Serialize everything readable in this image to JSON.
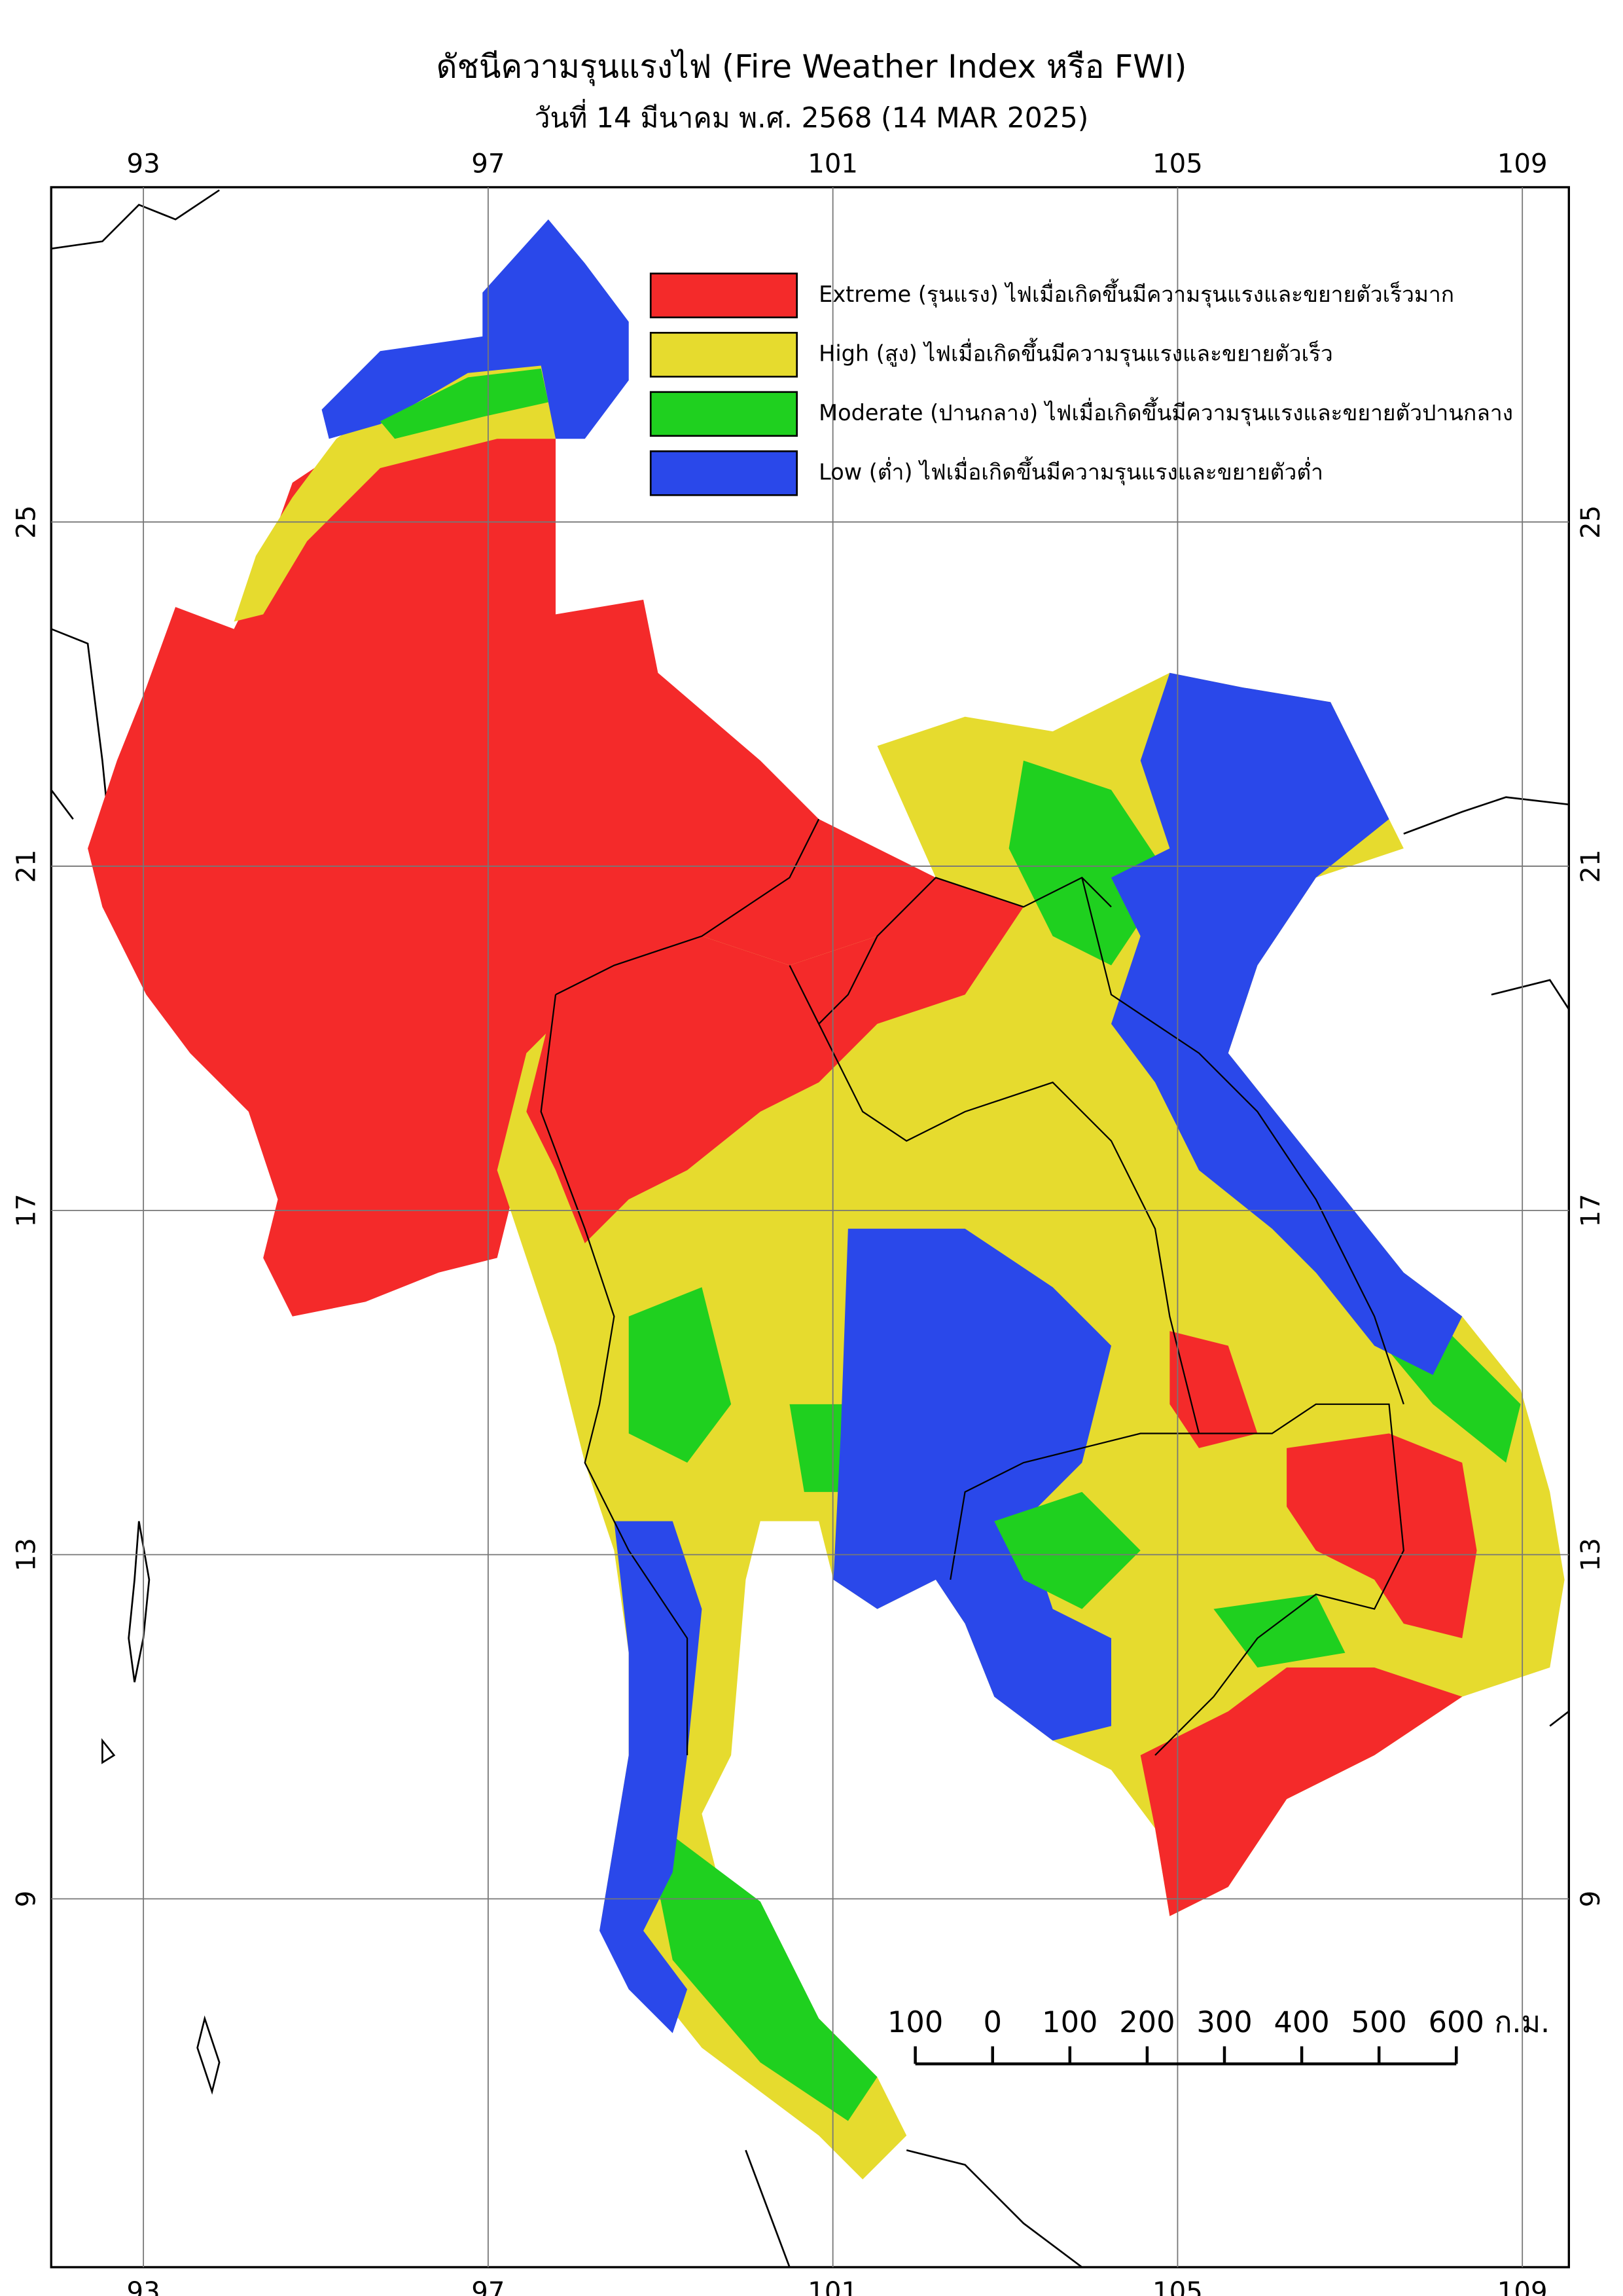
{
  "map": {
    "title": "ดัชนีความรุนแรงไฟ (Fire Weather Index หรือ FWI)",
    "subtitle": "วันที่ 14 มีนาคม พ.ศ. 2568 (14 MAR 2025)",
    "xlim": [
      91.93,
      109.54
    ],
    "ylim": [
      4.72,
      28.89
    ],
    "xticks": [
      93,
      97,
      101,
      105,
      109
    ],
    "yticks": [
      25,
      21,
      17,
      13,
      9
    ],
    "grid": true,
    "legend": [
      {
        "label": "Extreme (รุนแรง) ไฟเมื่อเกิดขึ้นมีความรุนแรงและขยายตัวเร็วมาก",
        "color": "#f42a2a"
      },
      {
        "label": "High (สูง) ไฟเมื่อเกิดขึ้นมีความรุนแรงและขยายตัวเร็ว",
        "color": "#e6db2e"
      },
      {
        "label": "Moderate (ปานกลาง) ไฟเมื่อเกิดขึ้นมีความรุนแรงและขยายตัวปานกลาง",
        "color": "#1fd01f"
      },
      {
        "label": "Low (ต่ำ) ไฟเมื่อเกิดขึ้นมีความรุนแรงและขยายตัวต่ำ",
        "color": "#2a48ea"
      }
    ],
    "scale_bar": {
      "ticks": [
        {
          "value": -100,
          "label": "100"
        },
        0,
        100,
        200,
        300,
        400,
        500,
        600
      ],
      "unit": "ก.ม."
    }
  }
}
